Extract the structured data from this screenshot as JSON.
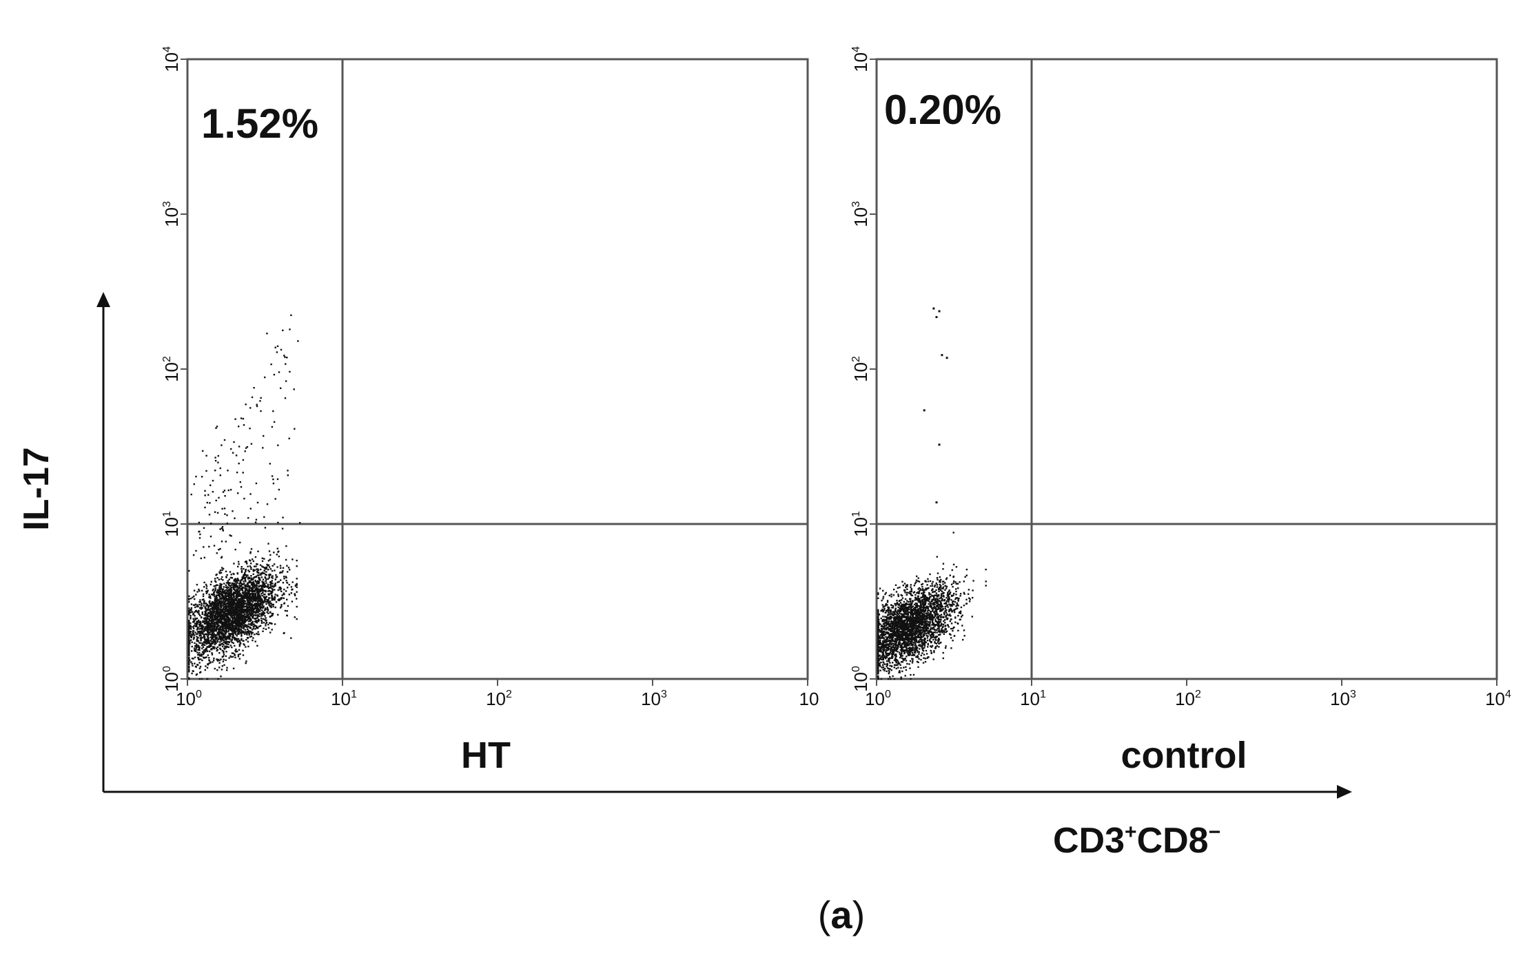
{
  "chart_data": [
    {
      "type": "scatter",
      "panel_label": "HT",
      "quadrant_percent": "1.52%",
      "x_ticks": [
        {
          "base": "10",
          "exp": "0"
        },
        {
          "base": "10",
          "exp": "1"
        },
        {
          "base": "10",
          "exp": "2"
        },
        {
          "base": "10",
          "exp": "3"
        },
        {
          "base": "10",
          "exp": ""
        }
      ],
      "y_ticks": [
        {
          "base": "10",
          "exp": "0"
        },
        {
          "base": "10",
          "exp": "1"
        },
        {
          "base": "10",
          "exp": "2"
        },
        {
          "base": "10",
          "exp": "3"
        },
        {
          "base": "10",
          "exp": "4"
        }
      ],
      "x_scale": "log",
      "y_scale": "log",
      "xlim": [
        1,
        10000
      ],
      "ylim": [
        1,
        10000
      ],
      "quadrant_gates": {
        "x": 10,
        "y": 10
      },
      "population": {
        "center_x": 1.9,
        "center_y": 2.7,
        "spread_x": 0.15,
        "spread_y": 0.14,
        "n": 3400,
        "tail_n": 160,
        "tail_max_y": 260
      }
    },
    {
      "type": "scatter",
      "panel_label": "control",
      "quadrant_percent": "0.20%",
      "x_ticks": [
        {
          "base": "10",
          "exp": "0"
        },
        {
          "base": "10",
          "exp": "1"
        },
        {
          "base": "10",
          "exp": "2"
        },
        {
          "base": "10",
          "exp": "3"
        },
        {
          "base": "10",
          "exp": "4"
        }
      ],
      "y_ticks": [
        {
          "base": "10",
          "exp": "0"
        },
        {
          "base": "10",
          "exp": "1"
        },
        {
          "base": "10",
          "exp": "2"
        },
        {
          "base": "10",
          "exp": "3"
        },
        {
          "base": "10",
          "exp": "4"
        }
      ],
      "x_scale": "log",
      "y_scale": "log",
      "xlim": [
        1,
        10000
      ],
      "ylim": [
        1,
        10000
      ],
      "quadrant_gates": {
        "x": 10,
        "y": 10
      },
      "population": {
        "center_x": 1.6,
        "center_y": 2.2,
        "spread_x": 0.15,
        "spread_y": 0.13,
        "n": 3000,
        "tail_n": 0
      },
      "outlier_points": [
        {
          "x": 2.3,
          "y": 250
        },
        {
          "x": 2.5,
          "y": 240
        },
        {
          "x": 2.4,
          "y": 220
        },
        {
          "x": 2.6,
          "y": 125
        },
        {
          "x": 2.8,
          "y": 120
        },
        {
          "x": 2.0,
          "y": 55
        },
        {
          "x": 2.5,
          "y": 33
        },
        {
          "x": 2.4,
          "y": 14
        }
      ]
    }
  ],
  "y_axis_label": "IL-17",
  "x_axis_label": {
    "main": "CD3",
    "sup1": "+",
    "main2": "CD8",
    "sup2": "−"
  },
  "caption": {
    "open": "(",
    "letter": "a",
    "close": ")"
  }
}
